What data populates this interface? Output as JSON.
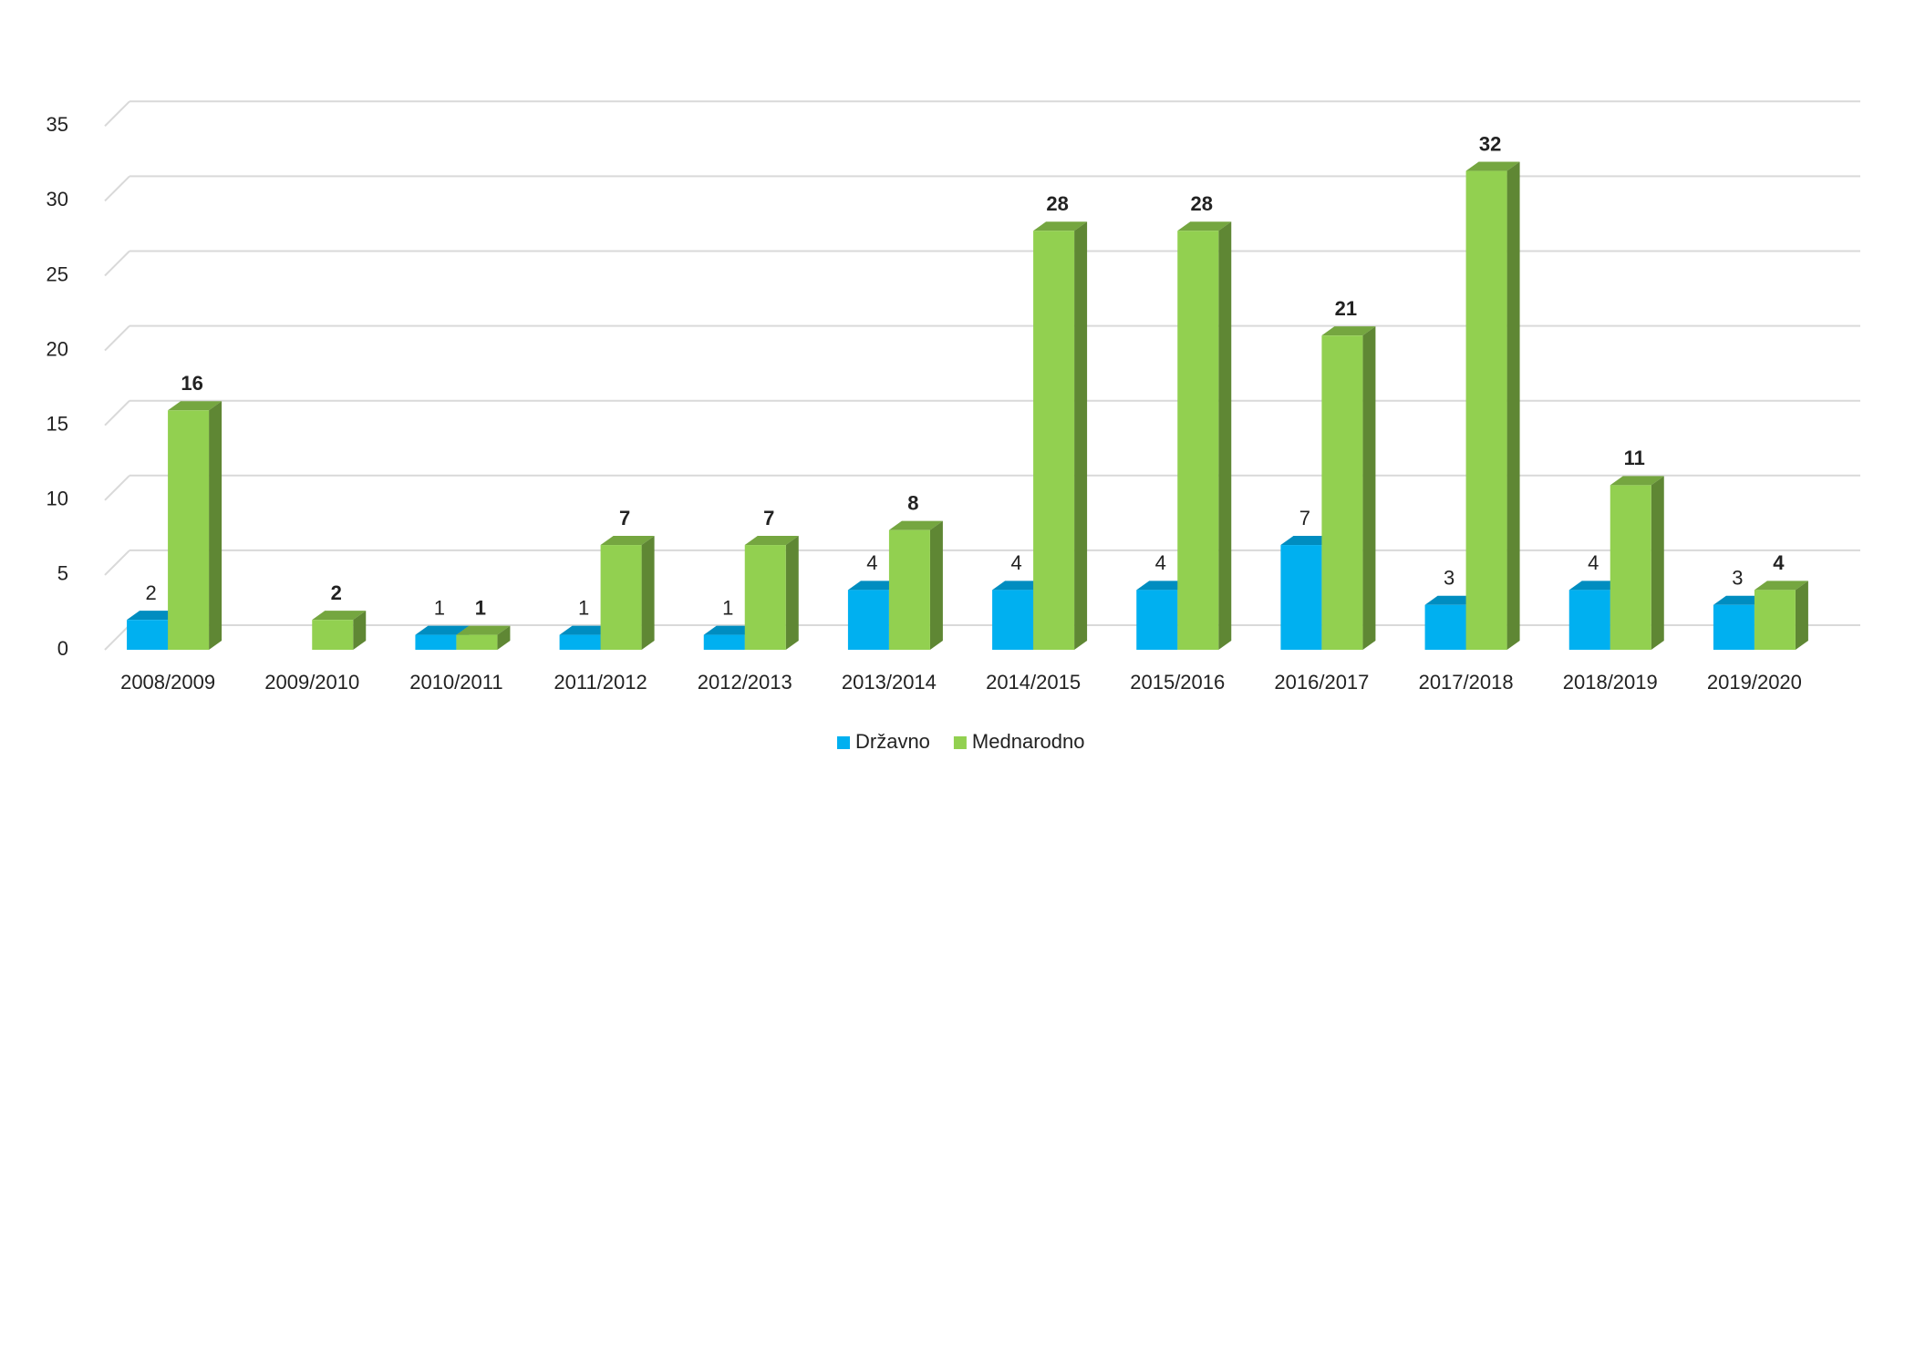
{
  "chart_data": {
    "type": "bar3d",
    "categories": [
      "2008/2009",
      "2009/2010",
      "2010/2011",
      "2011/2012",
      "2012/2013",
      "2013/2014",
      "2014/2015",
      "2015/2016",
      "2016/2017",
      "2017/2018",
      "2018/2019",
      "2019/2020"
    ],
    "series": [
      {
        "name": "Državno",
        "color": "#00b0f0",
        "values": [
          2,
          null,
          1,
          1,
          1,
          4,
          4,
          4,
          7,
          3,
          4,
          3
        ]
      },
      {
        "name": "Mednarodno",
        "color": "#92d050",
        "values": [
          16,
          2,
          1,
          7,
          7,
          8,
          28,
          28,
          21,
          32,
          11,
          4
        ]
      }
    ],
    "ylim": [
      0,
      35
    ],
    "yticks": [
      0,
      5,
      10,
      15,
      20,
      25,
      30,
      35
    ],
    "grid": true,
    "legend": "bottom"
  }
}
